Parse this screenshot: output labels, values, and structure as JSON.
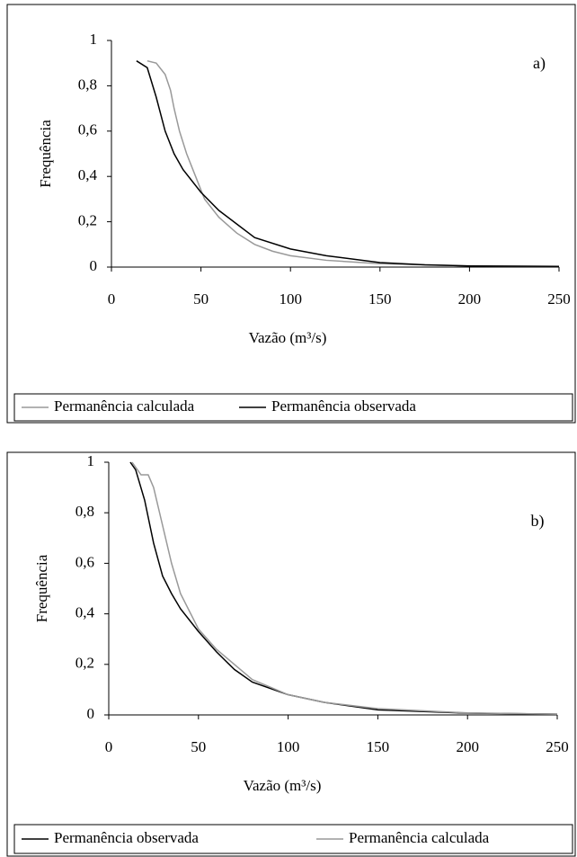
{
  "chart_data": [
    {
      "type": "line",
      "annotation": "a)",
      "ylabel": "Frequência",
      "xlabel": "Vazão (m³/s)",
      "xlim": [
        0,
        250
      ],
      "xticks": [
        0,
        50,
        100,
        150,
        200,
        250
      ],
      "ylim": [
        0,
        1
      ],
      "yticks": [
        0,
        {
          "value": 0.2,
          "label": "0,2"
        },
        {
          "value": 0.4,
          "label": "0,4"
        },
        {
          "value": 0.6,
          "label": "0,6"
        },
        {
          "value": 0.8,
          "label": "0,8"
        },
        1
      ],
      "series": [
        {
          "name": "Permanência calculada",
          "color": "#999999",
          "x": [
            20,
            25,
            30,
            33,
            35,
            38,
            42,
            47,
            52,
            60,
            70,
            80,
            90,
            100,
            120,
            150,
            200,
            250
          ],
          "values": [
            0.91,
            0.9,
            0.85,
            0.78,
            0.7,
            0.6,
            0.5,
            0.4,
            0.3,
            0.22,
            0.15,
            0.1,
            0.07,
            0.05,
            0.03,
            0.015,
            0.005,
            0.003
          ]
        },
        {
          "name": "Permanência observada",
          "color": "#000000",
          "x": [
            14,
            20,
            25,
            30,
            35,
            40,
            50,
            60,
            70,
            80,
            100,
            120,
            150,
            175,
            200,
            250
          ],
          "values": [
            0.91,
            0.88,
            0.75,
            0.6,
            0.5,
            0.43,
            0.33,
            0.25,
            0.19,
            0.13,
            0.08,
            0.05,
            0.02,
            0.01,
            0.005,
            0.003
          ]
        }
      ]
    },
    {
      "type": "line",
      "annotation": "b)",
      "ylabel": "Frequência",
      "xlabel": "Vazão (m³/s)",
      "xlim": [
        0,
        250
      ],
      "xticks": [
        0,
        50,
        100,
        150,
        200,
        250
      ],
      "ylim": [
        0,
        1
      ],
      "yticks": [
        0,
        {
          "value": 0.2,
          "label": "0,2"
        },
        {
          "value": 0.4,
          "label": "0,4"
        },
        {
          "value": 0.6,
          "label": "0,6"
        },
        {
          "value": 0.8,
          "label": "0,8"
        },
        1
      ],
      "series": [
        {
          "name": "Permanência observada",
          "color": "#000000",
          "x": [
            12,
            15,
            20,
            25,
            30,
            35,
            40,
            50,
            60,
            70,
            80,
            100,
            120,
            150,
            200,
            250
          ],
          "values": [
            1,
            0.97,
            0.85,
            0.68,
            0.55,
            0.48,
            0.42,
            0.33,
            0.25,
            0.18,
            0.13,
            0.08,
            0.05,
            0.02,
            0.007,
            0.003
          ]
        },
        {
          "name": "Permanência calculada",
          "color": "#999999",
          "x": [
            13,
            18,
            22,
            25,
            30,
            35,
            40,
            50,
            60,
            70,
            80,
            100,
            120,
            150,
            200,
            250
          ],
          "values": [
            1,
            0.95,
            0.95,
            0.9,
            0.75,
            0.6,
            0.48,
            0.34,
            0.26,
            0.2,
            0.14,
            0.08,
            0.05,
            0.025,
            0.008,
            0.003
          ]
        }
      ]
    }
  ]
}
